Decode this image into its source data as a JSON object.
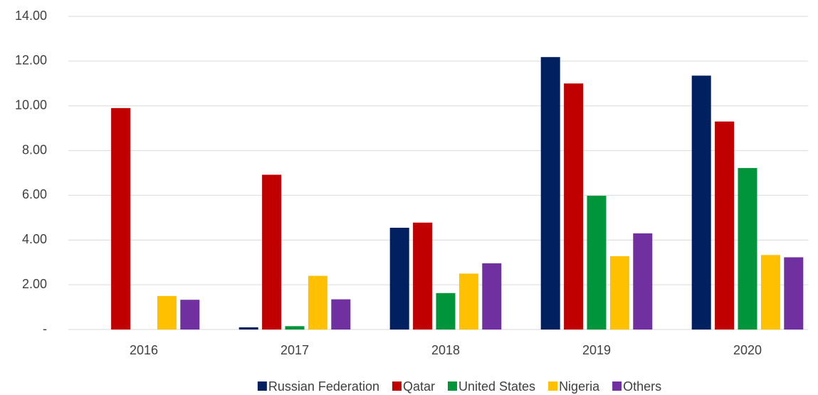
{
  "chart_data": {
    "type": "bar",
    "categories": [
      "2016",
      "2017",
      "2018",
      "2019",
      "2020"
    ],
    "series": [
      {
        "name": "Russian Federation",
        "color": "#002060",
        "values": [
          0,
          0.1,
          4.55,
          12.18,
          11.35
        ]
      },
      {
        "name": "Qatar",
        "color": "#c00000",
        "values": [
          9.9,
          6.92,
          4.78,
          11.0,
          9.3
        ]
      },
      {
        "name": "United States",
        "color": "#00953a",
        "values": [
          0,
          0.15,
          1.63,
          5.98,
          7.22
        ]
      },
      {
        "name": "Nigeria",
        "color": "#ffc000",
        "values": [
          1.5,
          2.4,
          2.5,
          3.28,
          3.33
        ]
      },
      {
        "name": "Others",
        "color": "#7030a0",
        "values": [
          1.33,
          1.35,
          2.96,
          4.3,
          3.23
        ]
      }
    ],
    "ylim": [
      0,
      14
    ],
    "yticks": [
      {
        "value": 0,
        "label": "-"
      },
      {
        "value": 2,
        "label": "2.00"
      },
      {
        "value": 4,
        "label": "4.00"
      },
      {
        "value": 6,
        "label": "6.00"
      },
      {
        "value": 8,
        "label": "8.00"
      },
      {
        "value": 10,
        "label": "10.00"
      },
      {
        "value": 12,
        "label": "12.00"
      },
      {
        "value": 14,
        "label": "14.00"
      }
    ],
    "grid": true,
    "legend": "bottom"
  }
}
